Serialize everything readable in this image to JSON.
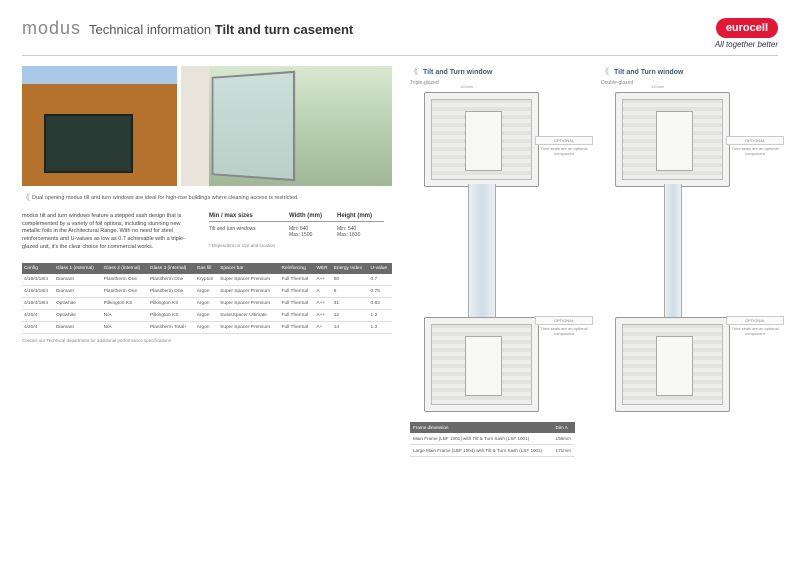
{
  "header": {
    "brand": "modus",
    "title_prefix": "Technical information",
    "title_strong": "Tilt and turn casement",
    "logo": "eurocell",
    "tagline": "All together better"
  },
  "caption": "Dual opening modus tilt and turn windows are ideal for high-rise buildings where cleaning access is restricted.",
  "body_text": "modus tilt and turn windows feature a stepped sash design that is complemented by a variety of foil options, including stunning new metallic foils in the Architectural Range. With no need for steel reinforcements and U-values as low as 0.7 achievable with a triple-glazed unit, it's the clear choice for commercial works.",
  "minmax": {
    "heading": "Min / max sizes",
    "col_width": "Width (mm)",
    "col_height": "Height (mm)",
    "row_label": "Tilt and turn windows",
    "width_val": "Min: 640\nMax: 1500",
    "height_val": "Min: 540\nMax: 1830",
    "note": "* Dependent on size and location"
  },
  "specs": {
    "headers": [
      "Config",
      "Glass 1 (external)",
      "Glass 2 (internal)",
      "Glass 3 (internal)",
      "Gas fill",
      "Spacer bar",
      "Reinforcing",
      "WER",
      "Energy Index",
      "U-value"
    ],
    "rows": [
      [
        "4/18/4/18/4",
        "Diamant",
        "Planitherm One",
        "Planitherm One",
        "Krypton",
        "Super Spacer Premium",
        "Full Thermal",
        "A++",
        "50",
        "0.7"
      ],
      [
        "4/18/4/18/4",
        "Diamant",
        "Planitherm One",
        "Planitherm One",
        "Argon",
        "Super Spacer Premium",
        "Full Thermal",
        "A",
        "6",
        "0.76"
      ],
      [
        "4/18/4/18/4",
        "Optiwhite",
        "Pilkington KS",
        "Pilkington KS",
        "Argon",
        "Super Spacer Premium",
        "Full Thermal",
        "A++",
        "31",
        "0.82"
      ],
      [
        "4/20/4",
        "Optiwhite",
        "N/A",
        "Pilkington KS",
        "Argon",
        "SwissSpacer Ultimate",
        "Full Thermal",
        "A++",
        "12",
        "1.3"
      ],
      [
        "4/20/4",
        "Diamant",
        "N/A",
        "Planitherm Total+",
        "Argon",
        "Super Spacer Premium",
        "Full Thermal",
        "A+",
        "14",
        "1.3"
      ]
    ],
    "note": "Contact our Technical department for additional performance specifications"
  },
  "diagrams": {
    "left": {
      "title": "Tilt and Turn window",
      "sub": "Triple-glazed",
      "dim": "120mm"
    },
    "right": {
      "title": "Tilt and Turn window",
      "sub": "Double-glazed",
      "dim": "120mm"
    },
    "callout_label": "OPTIONAL",
    "callout_text": "Third seals are an optional component"
  },
  "dims_table": {
    "headers": [
      "Frame dimension",
      "Dim A"
    ],
    "rows": [
      [
        "Main Frame (LBF 1001) with Tilt & Turn Sash (LSF 1001)",
        "158mm"
      ],
      [
        "Large Main Frame (LBF 1004) with Tilt & Turn Sash (LSF 1001)",
        "171mm"
      ]
    ]
  },
  "colors": {
    "accent": "#e31837",
    "header_bg": "#6a6a6a",
    "diagram_title": "#4a5a6a"
  }
}
